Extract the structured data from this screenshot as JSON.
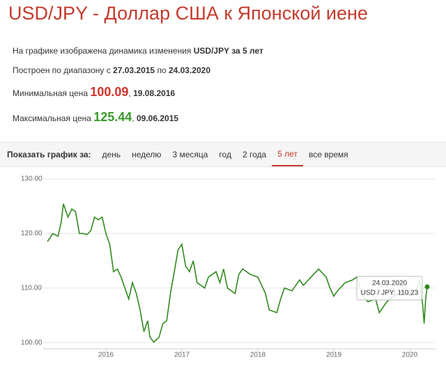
{
  "header": {
    "title": "USD/JPY - Доллар США к Японской иене"
  },
  "info": [
    [
      {
        "text": "На графике изображена динамика изменения "
      },
      {
        "text": "USD/JPY за 5 лет",
        "style": "bold"
      }
    ],
    [
      {
        "text": "Построен по диапазону с "
      },
      {
        "text": "27.03.2015",
        "style": "bold"
      },
      {
        "text": " по "
      },
      {
        "text": "24.03.2020",
        "style": "bold"
      }
    ],
    [
      {
        "text": "Минимальная цена "
      },
      {
        "text": "100.09",
        "style": "min"
      },
      {
        "text": ", "
      },
      {
        "text": "19.08.2016",
        "style": "bold"
      }
    ],
    [
      {
        "text": "Максимальная цена "
      },
      {
        "text": "125.44",
        "style": "max"
      },
      {
        "text": ", "
      },
      {
        "text": "09.06.2015",
        "style": "bold"
      }
    ]
  ],
  "tabs": {
    "label": "Показать график за:",
    "items": [
      "день",
      "неделю",
      "3 месяца",
      "год",
      "2 года",
      "5 лет",
      "все время"
    ],
    "active": 5
  },
  "chart_data": {
    "type": "line",
    "color": "#2f8a1c",
    "x": [
      2015.23,
      2015.3,
      2015.37,
      2015.41,
      2015.44,
      2015.5,
      2015.55,
      2015.6,
      2015.65,
      2015.7,
      2015.75,
      2015.8,
      2015.85,
      2015.9,
      2015.95,
      2016.0,
      2016.05,
      2016.1,
      2016.15,
      2016.2,
      2016.3,
      2016.35,
      2016.4,
      2016.45,
      2016.5,
      2016.55,
      2016.58,
      2016.63,
      2016.7,
      2016.75,
      2016.8,
      2016.85,
      2016.9,
      2016.95,
      2017.0,
      2017.05,
      2017.1,
      2017.15,
      2017.2,
      2017.3,
      2017.35,
      2017.45,
      2017.5,
      2017.55,
      2017.6,
      2017.7,
      2017.75,
      2017.8,
      2017.9,
      2018.0,
      2018.1,
      2018.15,
      2018.25,
      2018.3,
      2018.35,
      2018.45,
      2018.55,
      2018.6,
      2018.7,
      2018.8,
      2018.9,
      2018.95,
      2019.0,
      2019.05,
      2019.15,
      2019.25,
      2019.3,
      2019.38,
      2019.45,
      2019.55,
      2019.6,
      2019.7,
      2019.8,
      2019.9,
      2020.0,
      2020.1,
      2020.13,
      2020.17,
      2020.19,
      2020.21,
      2020.23
    ],
    "values": [
      118.5,
      120,
      119.5,
      122,
      125.44,
      123,
      124.5,
      124,
      120,
      120,
      119.8,
      120.5,
      123,
      122.5,
      123,
      120,
      118,
      113,
      113.5,
      112,
      108,
      111,
      109,
      106,
      102,
      104,
      101,
      100.09,
      101,
      103.5,
      104,
      109,
      113,
      117,
      118,
      114,
      113,
      115,
      111,
      110,
      112,
      113,
      111,
      113.5,
      110,
      109,
      112.5,
      113.5,
      112.5,
      112,
      109,
      106,
      105.5,
      108,
      110,
      109.5,
      111.5,
      110.5,
      112,
      113.5,
      112,
      110,
      108.5,
      109.5,
      111,
      111.5,
      112,
      108.5,
      107.5,
      108,
      105.5,
      107.5,
      108.5,
      109.5,
      108.5,
      110,
      111.5,
      107,
      103.5,
      108,
      110.23
    ],
    "xlim": [
      2015.22,
      2020.23
    ],
    "ylim": [
      99,
      130.9
    ],
    "xticks": [
      2016,
      2017,
      2018,
      2019,
      2020
    ],
    "yticks": [
      {
        "value": 100,
        "label": "100.00"
      },
      {
        "value": 110,
        "label": "110.00"
      },
      {
        "value": 120,
        "label": "120.00"
      },
      {
        "value": 130,
        "label": "130.00"
      }
    ],
    "grid": true,
    "tooltip": {
      "date": "24.03.2020",
      "label": "USD / JPY: 110.23"
    }
  }
}
